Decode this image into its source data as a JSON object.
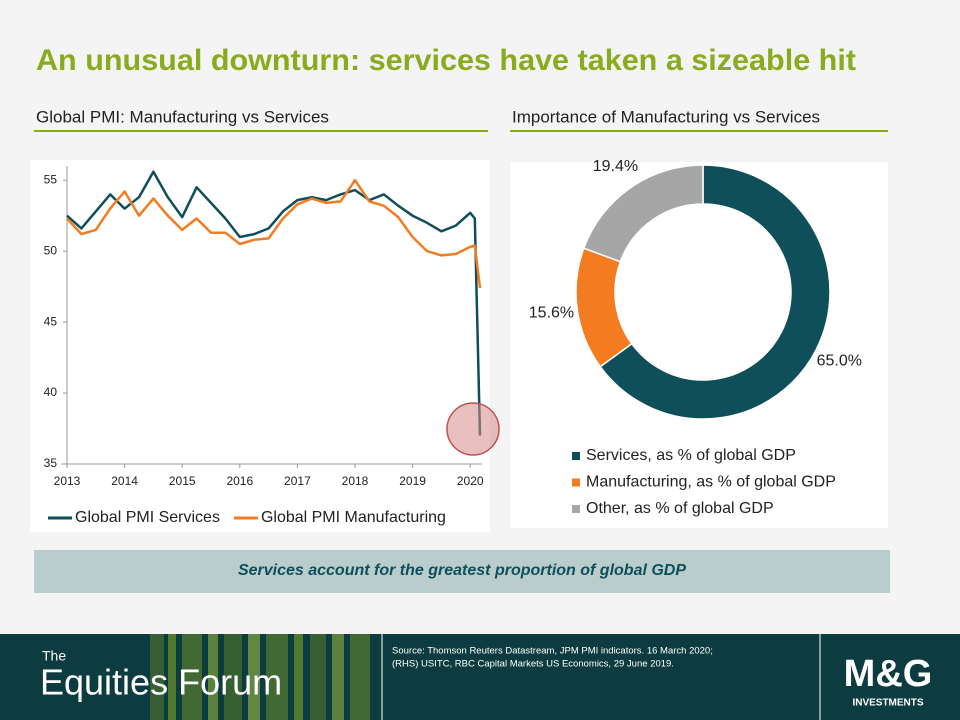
{
  "header": {
    "title": "An unusual downturn: services have taken a sizeable hit"
  },
  "chart_data": [
    {
      "type": "line",
      "title": "Global PMI: Manufacturing vs Services",
      "x": [
        2013.0,
        2013.25,
        2013.5,
        2013.75,
        2014.0,
        2014.25,
        2014.5,
        2014.75,
        2015.0,
        2015.25,
        2015.5,
        2015.75,
        2016.0,
        2016.25,
        2016.5,
        2016.75,
        2017.0,
        2017.25,
        2017.5,
        2017.75,
        2018.0,
        2018.25,
        2018.5,
        2018.75,
        2019.0,
        2019.25,
        2019.5,
        2019.75,
        2020.0,
        2020.08,
        2020.17
      ],
      "series": [
        {
          "name": "Global PMI Services",
          "color": "#0f4f5a",
          "values": [
            52.5,
            51.6,
            52.8,
            54.0,
            53.0,
            53.8,
            55.6,
            53.8,
            52.4,
            54.5,
            53.4,
            52.3,
            51.0,
            51.2,
            51.6,
            52.8,
            53.6,
            53.8,
            53.6,
            54.0,
            54.3,
            53.6,
            54.0,
            53.2,
            52.5,
            52.0,
            51.4,
            51.8,
            52.7,
            52.3,
            37.0
          ]
        },
        {
          "name": "Global PMI Manufacturing",
          "color": "#f47b20",
          "values": [
            52.3,
            51.2,
            51.5,
            53.0,
            54.2,
            52.5,
            53.7,
            52.5,
            51.5,
            52.3,
            51.3,
            51.3,
            50.5,
            50.8,
            50.9,
            52.3,
            53.3,
            53.7,
            53.4,
            53.5,
            55.0,
            53.5,
            53.2,
            52.4,
            51.0,
            50.0,
            49.7,
            49.8,
            50.3,
            50.4,
            47.4
          ]
        }
      ],
      "xlim": [
        2013,
        2020.2
      ],
      "xticks": [
        2013,
        2014,
        2015,
        2016,
        2017,
        2018,
        2019,
        2020
      ],
      "ylim": [
        35,
        56
      ],
      "yticks": [
        35,
        40,
        45,
        50,
        55
      ],
      "legend": "bottom"
    },
    {
      "type": "pie",
      "title": "Importance of Manufacturing vs Services",
      "donut": true,
      "categories": [
        "Services, as % of global GDP",
        "Manufacturing, as % of global GDP",
        "Other, as % of global GDP"
      ],
      "values": [
        65.0,
        15.6,
        19.4
      ],
      "value_labels": [
        "65.0%",
        "15.6%",
        "19.4%"
      ],
      "colors": [
        "#0f4f5a",
        "#f47b20",
        "#a6a6a6"
      ],
      "legend": "bottom"
    }
  ],
  "banner": "Services account for the greatest proportion of global GDP",
  "footer": {
    "brand_small": "The",
    "brand": "Equities Forum",
    "source": [
      "Source: Thomson Reuters Datastream, JPM PMI indicators. 16 March 2020;",
      "(RHS) USITC, RBC Capital Markets US Economics, 29 June 2019."
    ],
    "logo": "M&G",
    "logo_sub": "INVESTMENTS"
  }
}
